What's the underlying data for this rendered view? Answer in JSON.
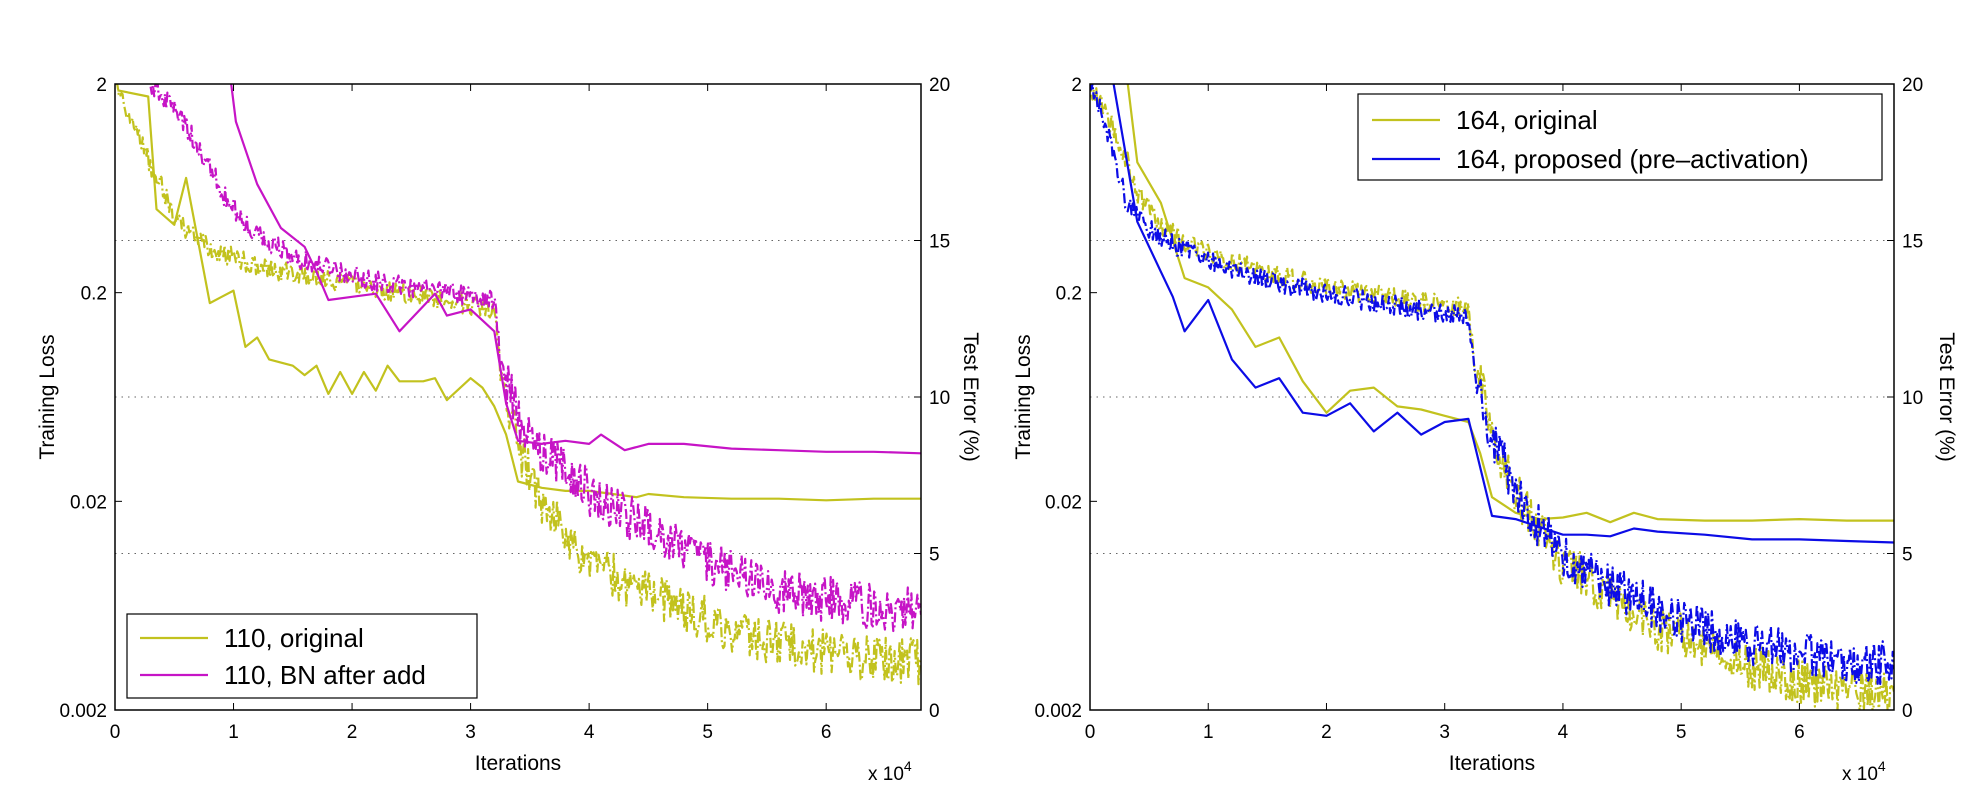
{
  "chart_data": [
    {
      "type": "line",
      "panel": "left",
      "xlabel": "Iterations",
      "ylabel_left": "Training Loss",
      "ylabel_right": "Test Error (%)",
      "x_multiplier": "x 10",
      "x_multiplier_exp": "4",
      "x_ticks": [
        "0",
        "1",
        "2",
        "3",
        "4",
        "5",
        "6"
      ],
      "y_left_ticks": [
        "0.002",
        "0.02",
        "0.2",
        "2"
      ],
      "y_right_ticks": [
        "0",
        "5",
        "10",
        "15",
        "20"
      ],
      "xlim": [
        0,
        68000
      ],
      "ylim_left": [
        0.002,
        2
      ],
      "ylim_left_scale": "log",
      "ylim_right": [
        0,
        20
      ],
      "grid": "dotted horizontal at test error 5, 10, 15",
      "legend_position": "bottom-left",
      "legend": [
        "110, original",
        "110, BN after add"
      ],
      "series": [
        {
          "name": "110, original",
          "color": "#c2c21e",
          "loss": [
            [
              0,
              1.9
            ],
            [
              3000,
              0.8
            ],
            [
              5000,
              0.45
            ],
            [
              8000,
              0.32
            ],
            [
              12000,
              0.27
            ],
            [
              16000,
              0.24
            ],
            [
              20000,
              0.22
            ],
            [
              24000,
              0.2
            ],
            [
              28000,
              0.185
            ],
            [
              31000,
              0.17
            ],
            [
              32000,
              0.16
            ],
            [
              32500,
              0.08
            ],
            [
              34000,
              0.035
            ],
            [
              36000,
              0.02
            ],
            [
              38000,
              0.014
            ],
            [
              40000,
              0.01
            ],
            [
              44000,
              0.0075
            ],
            [
              48000,
              0.006
            ],
            [
              52000,
              0.0048
            ],
            [
              56000,
              0.0042
            ],
            [
              60000,
              0.0038
            ],
            [
              64000,
              0.0035
            ],
            [
              68000,
              0.0034
            ]
          ],
          "error": [
            [
              200,
              19.8
            ],
            [
              2800,
              19.6
            ],
            [
              3500,
              16.0
            ],
            [
              5000,
              15.5
            ],
            [
              6000,
              17.0
            ],
            [
              7500,
              14.0
            ],
            [
              8000,
              13.0
            ],
            [
              9000,
              13.2
            ],
            [
              10000,
              13.4
            ],
            [
              11000,
              11.6
            ],
            [
              12000,
              11.9
            ],
            [
              13000,
              11.2
            ],
            [
              14000,
              11.1
            ],
            [
              15000,
              11.0
            ],
            [
              16000,
              10.7
            ],
            [
              17000,
              11.0
            ],
            [
              18000,
              10.1
            ],
            [
              19000,
              10.8
            ],
            [
              20000,
              10.1
            ],
            [
              21000,
              10.8
            ],
            [
              22000,
              10.2
            ],
            [
              23000,
              11.0
            ],
            [
              24000,
              10.5
            ],
            [
              25000,
              10.5
            ],
            [
              26000,
              10.5
            ],
            [
              27000,
              10.6
            ],
            [
              28000,
              9.9
            ],
            [
              30000,
              10.6
            ],
            [
              31000,
              10.3
            ],
            [
              32000,
              9.7
            ],
            [
              33000,
              8.8
            ],
            [
              34000,
              7.3
            ],
            [
              36000,
              7.1
            ],
            [
              38000,
              7.0
            ],
            [
              40000,
              7.0
            ],
            [
              42000,
              6.9
            ],
            [
              44000,
              6.8
            ],
            [
              45000,
              6.9
            ],
            [
              48000,
              6.8
            ],
            [
              52000,
              6.75
            ],
            [
              56000,
              6.75
            ],
            [
              60000,
              6.7
            ],
            [
              64000,
              6.75
            ],
            [
              68000,
              6.75
            ]
          ]
        },
        {
          "name": "110, BN after add",
          "color": "#c614c6",
          "loss": [
            [
              3000,
              1.95
            ],
            [
              5000,
              1.5
            ],
            [
              7000,
              1.0
            ],
            [
              9000,
              0.6
            ],
            [
              11000,
              0.42
            ],
            [
              13000,
              0.35
            ],
            [
              15000,
              0.3
            ],
            [
              18000,
              0.26
            ],
            [
              21000,
              0.235
            ],
            [
              24000,
              0.215
            ],
            [
              28000,
              0.2
            ],
            [
              31000,
              0.19
            ],
            [
              32000,
              0.18
            ],
            [
              32500,
              0.09
            ],
            [
              34000,
              0.05
            ],
            [
              36000,
              0.035
            ],
            [
              38000,
              0.028
            ],
            [
              40000,
              0.022
            ],
            [
              44000,
              0.016
            ],
            [
              48000,
              0.012
            ],
            [
              52000,
              0.009
            ],
            [
              56000,
              0.0075
            ],
            [
              60000,
              0.0068
            ],
            [
              64000,
              0.0062
            ],
            [
              68000,
              0.006
            ]
          ],
          "error": [
            [
              9800,
              20
            ],
            [
              10200,
              18.8
            ],
            [
              12000,
              16.8
            ],
            [
              14000,
              15.4
            ],
            [
              16000,
              14.8
            ],
            [
              17000,
              14.0
            ],
            [
              18000,
              13.1
            ],
            [
              20000,
              13.2
            ],
            [
              22000,
              13.3
            ],
            [
              24000,
              12.1
            ],
            [
              26000,
              12.9
            ],
            [
              27000,
              13.3
            ],
            [
              28000,
              12.6
            ],
            [
              30000,
              12.8
            ],
            [
              32000,
              12.1
            ],
            [
              33000,
              9.8
            ],
            [
              34000,
              8.6
            ],
            [
              36000,
              8.5
            ],
            [
              38000,
              8.6
            ],
            [
              40000,
              8.5
            ],
            [
              41000,
              8.8
            ],
            [
              43000,
              8.3
            ],
            [
              45000,
              8.5
            ],
            [
              48000,
              8.5
            ],
            [
              52000,
              8.35
            ],
            [
              56000,
              8.3
            ],
            [
              60000,
              8.25
            ],
            [
              64000,
              8.25
            ],
            [
              68000,
              8.2
            ]
          ]
        }
      ]
    },
    {
      "type": "line",
      "panel": "right",
      "xlabel": "Iterations",
      "ylabel_left": "Training Loss",
      "ylabel_right": "Test Error (%)",
      "x_multiplier": "x 10",
      "x_multiplier_exp": "4",
      "x_ticks": [
        "0",
        "1",
        "2",
        "3",
        "4",
        "5",
        "6"
      ],
      "y_left_ticks": [
        "0.002",
        "0.02",
        "0.2",
        "2"
      ],
      "y_right_ticks": [
        "0",
        "5",
        "10",
        "15",
        "20"
      ],
      "xlim": [
        0,
        68000
      ],
      "ylim_left": [
        0.002,
        2
      ],
      "ylim_left_scale": "log",
      "ylim_right": [
        0,
        20
      ],
      "grid": "dotted horizontal at test error 5, 10, 15",
      "legend_position": "top-right",
      "legend": [
        "164, original",
        "164, proposed (pre–activation)"
      ],
      "series": [
        {
          "name": "164, original",
          "color": "#c2c21e",
          "loss": [
            [
              0,
              1.95
            ],
            [
              2000,
              1.2
            ],
            [
              4000,
              0.6
            ],
            [
              6000,
              0.42
            ],
            [
              8000,
              0.35
            ],
            [
              12000,
              0.28
            ],
            [
              16000,
              0.24
            ],
            [
              20000,
              0.215
            ],
            [
              24000,
              0.195
            ],
            [
              28000,
              0.18
            ],
            [
              31000,
              0.17
            ],
            [
              32000,
              0.165
            ],
            [
              32500,
              0.09
            ],
            [
              34000,
              0.04
            ],
            [
              36000,
              0.022
            ],
            [
              38000,
              0.014
            ],
            [
              40000,
              0.01
            ],
            [
              44000,
              0.007
            ],
            [
              48000,
              0.005
            ],
            [
              52000,
              0.004
            ],
            [
              56000,
              0.0032
            ],
            [
              60000,
              0.0027
            ],
            [
              64000,
              0.0025
            ],
            [
              68000,
              0.0024
            ]
          ],
          "error": [
            [
              3200,
              20
            ],
            [
              4000,
              17.5
            ],
            [
              6000,
              16.2
            ],
            [
              8000,
              13.8
            ],
            [
              10000,
              13.5
            ],
            [
              12000,
              12.8
            ],
            [
              14000,
              11.6
            ],
            [
              16000,
              11.9
            ],
            [
              18000,
              10.5
            ],
            [
              20000,
              9.5
            ],
            [
              22000,
              10.2
            ],
            [
              24000,
              10.3
            ],
            [
              26000,
              9.7
            ],
            [
              28000,
              9.6
            ],
            [
              30000,
              9.4
            ],
            [
              32000,
              9.2
            ],
            [
              33000,
              8.2
            ],
            [
              34000,
              6.8
            ],
            [
              36000,
              6.3
            ],
            [
              38000,
              6.1
            ],
            [
              40000,
              6.15
            ],
            [
              42000,
              6.3
            ],
            [
              44000,
              6.0
            ],
            [
              46000,
              6.3
            ],
            [
              48000,
              6.1
            ],
            [
              52000,
              6.05
            ],
            [
              56000,
              6.05
            ],
            [
              60000,
              6.1
            ],
            [
              64000,
              6.05
            ],
            [
              68000,
              6.05
            ]
          ]
        },
        {
          "name": "164, proposed (pre–activation)",
          "color": "#0c0ce6",
          "loss": [
            [
              0,
              1.95
            ],
            [
              2000,
              0.9
            ],
            [
              3000,
              0.55
            ],
            [
              5000,
              0.4
            ],
            [
              8000,
              0.32
            ],
            [
              12000,
              0.26
            ],
            [
              16000,
              0.22
            ],
            [
              20000,
              0.2
            ],
            [
              24000,
              0.18
            ],
            [
              28000,
              0.165
            ],
            [
              31000,
              0.155
            ],
            [
              32000,
              0.15
            ],
            [
              32500,
              0.08
            ],
            [
              34000,
              0.038
            ],
            [
              36000,
              0.022
            ],
            [
              38000,
              0.015
            ],
            [
              40000,
              0.011
            ],
            [
              44000,
              0.008
            ],
            [
              48000,
              0.006
            ],
            [
              52000,
              0.0048
            ],
            [
              56000,
              0.0042
            ],
            [
              60000,
              0.0038
            ],
            [
              64000,
              0.0034
            ],
            [
              68000,
              0.0033
            ]
          ],
          "error": [
            [
              2000,
              20
            ],
            [
              4000,
              15.6
            ],
            [
              6000,
              14.0
            ],
            [
              7000,
              13.2
            ],
            [
              8000,
              12.1
            ],
            [
              10000,
              13.1
            ],
            [
              12000,
              11.2
            ],
            [
              14000,
              10.3
            ],
            [
              16000,
              10.6
            ],
            [
              18000,
              9.5
            ],
            [
              20000,
              9.4
            ],
            [
              22000,
              9.8
            ],
            [
              24000,
              8.9
            ],
            [
              26000,
              9.5
            ],
            [
              28000,
              8.8
            ],
            [
              30000,
              9.2
            ],
            [
              32000,
              9.3
            ],
            [
              34000,
              6.2
            ],
            [
              36000,
              6.1
            ],
            [
              38000,
              5.85
            ],
            [
              40000,
              5.6
            ],
            [
              42000,
              5.6
            ],
            [
              44000,
              5.55
            ],
            [
              46000,
              5.8
            ],
            [
              48000,
              5.7
            ],
            [
              52000,
              5.6
            ],
            [
              56000,
              5.45
            ],
            [
              60000,
              5.45
            ],
            [
              64000,
              5.4
            ],
            [
              68000,
              5.35
            ]
          ]
        }
      ]
    }
  ]
}
